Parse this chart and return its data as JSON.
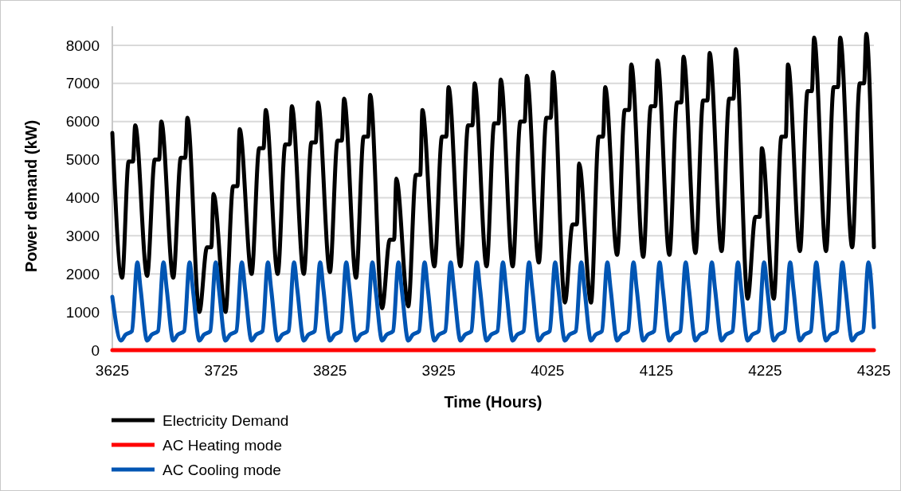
{
  "chart_data": {
    "type": "line",
    "xlabel": "Time (Hours)",
    "ylabel": "Power demand (kW)",
    "xlim": [
      3625,
      4325
    ],
    "ylim": [
      0,
      8500
    ],
    "xticks": [
      3625,
      3725,
      3825,
      3925,
      4025,
      4125,
      4225,
      4325
    ],
    "yticks": [
      0,
      1000,
      2000,
      3000,
      4000,
      5000,
      6000,
      7000,
      8000
    ],
    "grid": "y",
    "legend": "bottom left",
    "line_style": "solid",
    "marker": "none",
    "series": [
      {
        "name": "Electricity Demand",
        "color": "#000000",
        "x": [
          3625,
          3634,
          3640,
          3644,
          3646,
          3657,
          3664,
          3668,
          3670,
          3681,
          3688,
          3692,
          3694,
          3705,
          3712,
          3716,
          3718,
          3729,
          3736,
          3740,
          3742,
          3753,
          3760,
          3764,
          3766,
          3777,
          3784,
          3788,
          3790,
          3801,
          3808,
          3812,
          3814,
          3825,
          3832,
          3836,
          3838,
          3849,
          3856,
          3860,
          3862,
          3873,
          3880,
          3884,
          3886,
          3897,
          3904,
          3908,
          3910,
          3921,
          3928,
          3932,
          3934,
          3945,
          3952,
          3956,
          3958,
          3969,
          3976,
          3980,
          3982,
          3993,
          4000,
          4004,
          4006,
          4017,
          4024,
          4028,
          4030,
          4041,
          4048,
          4052,
          4054,
          4065,
          4072,
          4076,
          4078,
          4089,
          4096,
          4100,
          4102,
          4113,
          4120,
          4124,
          4126,
          4137,
          4144,
          4148,
          4150,
          4161,
          4168,
          4172,
          4174,
          4185,
          4192,
          4196,
          4198,
          4209,
          4216,
          4220,
          4222,
          4233,
          4240,
          4244,
          4246,
          4257,
          4264,
          4268,
          4270,
          4281,
          4288,
          4292,
          4294,
          4305,
          4312,
          4316,
          4318,
          4325
        ],
        "values": [
          5700,
          1900,
          4950,
          4950,
          5900,
          1950,
          5000,
          5000,
          6000,
          1900,
          5050,
          5050,
          6100,
          1000,
          2700,
          2700,
          4100,
          1000,
          4300,
          4300,
          5800,
          2000,
          5300,
          5300,
          6300,
          2000,
          5400,
          5400,
          6400,
          2000,
          5450,
          5450,
          6500,
          2050,
          5500,
          5500,
          6600,
          1900,
          5600,
          5600,
          6700,
          1100,
          2900,
          2900,
          4500,
          1150,
          4600,
          4600,
          6300,
          2200,
          5600,
          5600,
          6900,
          2200,
          5900,
          5900,
          7000,
          2200,
          5950,
          5950,
          7100,
          2200,
          6000,
          6000,
          7200,
          2300,
          6100,
          6100,
          7300,
          1250,
          3300,
          3300,
          4900,
          1250,
          5600,
          5600,
          6900,
          2500,
          6300,
          6300,
          7500,
          2450,
          6400,
          6400,
          7600,
          2500,
          6500,
          6500,
          7700,
          2550,
          6550,
          6550,
          7800,
          2600,
          6600,
          6600,
          7900,
          1350,
          3500,
          3500,
          5300,
          1350,
          5600,
          5600,
          7500,
          2600,
          6800,
          6800,
          8200,
          2600,
          6900,
          6900,
          8200,
          2700,
          7000,
          7000,
          8300,
          2700
        ]
      },
      {
        "name": "AC Heating mode",
        "color": "#ff0000",
        "x": [
          3625,
          4325
        ],
        "values": [
          0,
          0
        ]
      },
      {
        "name": "AC Cooling mode",
        "color": "#0055b3",
        "x": [
          3625,
          3633,
          3637,
          3643,
          3648,
          3651,
          3657,
          3661,
          3667,
          3672,
          3675,
          3681,
          3685,
          3691,
          3696,
          3699,
          3705,
          3709,
          3715,
          3720,
          3723,
          3729,
          3733,
          3739,
          3744,
          3747,
          3753,
          3757,
          3763,
          3768,
          3771,
          3777,
          3781,
          3787,
          3792,
          3795,
          3801,
          3805,
          3811,
          3816,
          3819,
          3825,
          3829,
          3835,
          3840,
          3843,
          3849,
          3853,
          3859,
          3864,
          3867,
          3873,
          3877,
          3883,
          3888,
          3891,
          3897,
          3901,
          3907,
          3912,
          3915,
          3921,
          3925,
          3931,
          3936,
          3939,
          3945,
          3949,
          3955,
          3960,
          3963,
          3969,
          3973,
          3979,
          3984,
          3987,
          3993,
          3997,
          4003,
          4008,
          4011,
          4017,
          4021,
          4027,
          4032,
          4035,
          4041,
          4045,
          4051,
          4056,
          4059,
          4065,
          4069,
          4075,
          4080,
          4083,
          4089,
          4093,
          4099,
          4104,
          4107,
          4113,
          4117,
          4123,
          4128,
          4131,
          4137,
          4141,
          4147,
          4152,
          4155,
          4161,
          4165,
          4171,
          4176,
          4179,
          4185,
          4189,
          4195,
          4200,
          4203,
          4209,
          4213,
          4219,
          4224,
          4227,
          4233,
          4237,
          4243,
          4248,
          4251,
          4257,
          4261,
          4267,
          4272,
          4275,
          4281,
          4285,
          4291,
          4296,
          4299,
          4305,
          4309,
          4315,
          4320,
          4325
        ],
        "values": [
          1400,
          250,
          400,
          500,
          2300,
          1600,
          250,
          400,
          500,
          2300,
          1600,
          250,
          400,
          500,
          2300,
          1600,
          250,
          400,
          500,
          2300,
          1600,
          250,
          400,
          500,
          2300,
          1600,
          250,
          400,
          500,
          2300,
          1600,
          250,
          400,
          500,
          2300,
          1600,
          250,
          400,
          500,
          2300,
          1600,
          250,
          400,
          500,
          2300,
          1600,
          250,
          400,
          500,
          2300,
          1600,
          250,
          400,
          500,
          2300,
          1600,
          250,
          400,
          500,
          2300,
          1600,
          250,
          400,
          500,
          2300,
          1600,
          250,
          400,
          500,
          2300,
          1600,
          250,
          400,
          500,
          2300,
          1600,
          250,
          400,
          500,
          2300,
          1600,
          250,
          400,
          500,
          2300,
          1600,
          250,
          400,
          500,
          2300,
          1600,
          250,
          400,
          500,
          2300,
          1600,
          250,
          400,
          500,
          2300,
          1600,
          250,
          400,
          500,
          2300,
          1600,
          250,
          400,
          500,
          2300,
          1600,
          250,
          400,
          500,
          2300,
          1600,
          250,
          400,
          500,
          2300,
          1600,
          250,
          400,
          500,
          2300,
          1600,
          250,
          400,
          500,
          2300,
          1600,
          250,
          400,
          500,
          2300,
          1600,
          250,
          400,
          500,
          2300,
          1600,
          250,
          400,
          500,
          2300,
          600
        ]
      }
    ]
  }
}
